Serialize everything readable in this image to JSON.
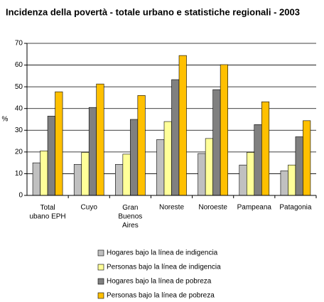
{
  "chart_data": {
    "type": "bar",
    "title": "Incidenza della povertà - totale urbano e statistiche regionali -  2003",
    "y_label": "%",
    "categories": [
      "Total\nubano EPH",
      "Cuyo",
      "Gran\nBuenos\nAires",
      "Noreste",
      "Noroeste",
      "Pampeana",
      "Patagonia"
    ],
    "series": [
      {
        "name": "Hogares bajo la línea de indigencia",
        "color": "#c0c0c0",
        "values": [
          15,
          14.3,
          14.3,
          25.7,
          19.3,
          14,
          11.3
        ]
      },
      {
        "name": "Personas bajo la línea de indigencia",
        "color": "#ffff99",
        "values": [
          20.5,
          19.8,
          19,
          34,
          26.2,
          19.8,
          14
        ]
      },
      {
        "name": "Hogares bajo la línea de pobreza",
        "color": "#808080",
        "values": [
          36.5,
          40.5,
          35,
          53.3,
          48.7,
          32.6,
          27
        ]
      },
      {
        "name": "Personas bajo la línea de pobreza",
        "color": "#ffc000",
        "values": [
          47.7,
          51.3,
          46,
          64.4,
          60.2,
          43.1,
          34.4
        ]
      }
    ],
    "ylim": [
      0,
      70
    ],
    "yticks": [
      0,
      10,
      20,
      30,
      40,
      50,
      60,
      70
    ],
    "grid": true
  }
}
